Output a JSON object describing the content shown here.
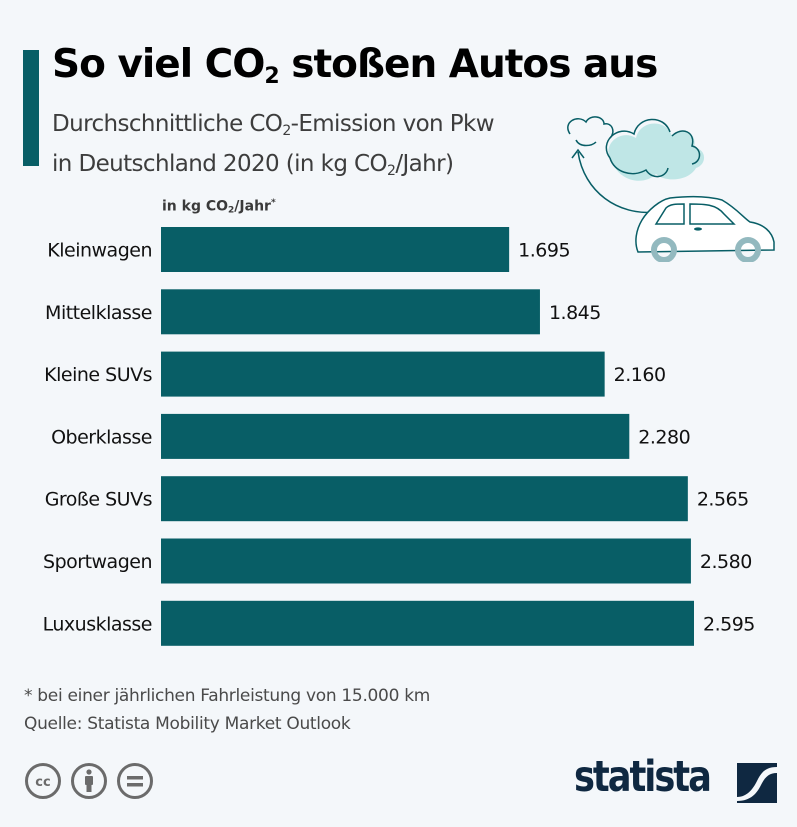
{
  "header": {
    "title_pre": "So viel CO",
    "title_sub": "2",
    "title_post": " stoßen Autos aus",
    "subtitle_line1_pre": "Durchschnittliche CO",
    "subtitle_line1_sub": "2",
    "subtitle_line1_post": "-Emission von Pkw",
    "subtitle_line2_pre": "in Deutschland 2020 (in kg CO",
    "subtitle_line2_sub": "2",
    "subtitle_line2_post": "/Jahr)"
  },
  "unit_label": {
    "pre": "in kg CO",
    "sub": "2",
    "post": "/Jahr",
    "asterisk": "*"
  },
  "chart_data": {
    "type": "bar",
    "orientation": "horizontal",
    "title": "So viel CO2 stoßen Autos aus",
    "subtitle": "Durchschnittliche CO2-Emission von Pkw in Deutschland 2020 (in kg CO2/Jahr)",
    "xlabel": "in kg CO2/Jahr*",
    "ylabel": "",
    "categories": [
      "Kleinwagen",
      "Mittelklasse",
      "Kleine SUVs",
      "Oberklasse",
      "Große SUVs",
      "Sportwagen",
      "Luxusklasse"
    ],
    "values": [
      1695,
      1845,
      2160,
      2280,
      2565,
      2580,
      2595
    ],
    "value_labels": [
      "1.695",
      "1.845",
      "2.160",
      "2.280",
      "2.565",
      "2.580",
      "2.595"
    ],
    "xlim": [
      0,
      2595
    ],
    "grid": false,
    "legend": "none",
    "bar_color": "#085e66"
  },
  "footer": {
    "footnote": "* bei einer jährlichen Fahrleistung von 15.000 km",
    "source": "Quelle: Statista Mobility Market Outlook",
    "license_icons": [
      "cc-icon",
      "attribution-icon",
      "no-derivatives-icon"
    ],
    "logo_text": "statista"
  },
  "colors": {
    "accent": "#085e66",
    "background": "#f4f7fa",
    "logo": "#0f2841",
    "cloud_fill": "#bfe6e6",
    "wheel": "#93b9bf"
  }
}
